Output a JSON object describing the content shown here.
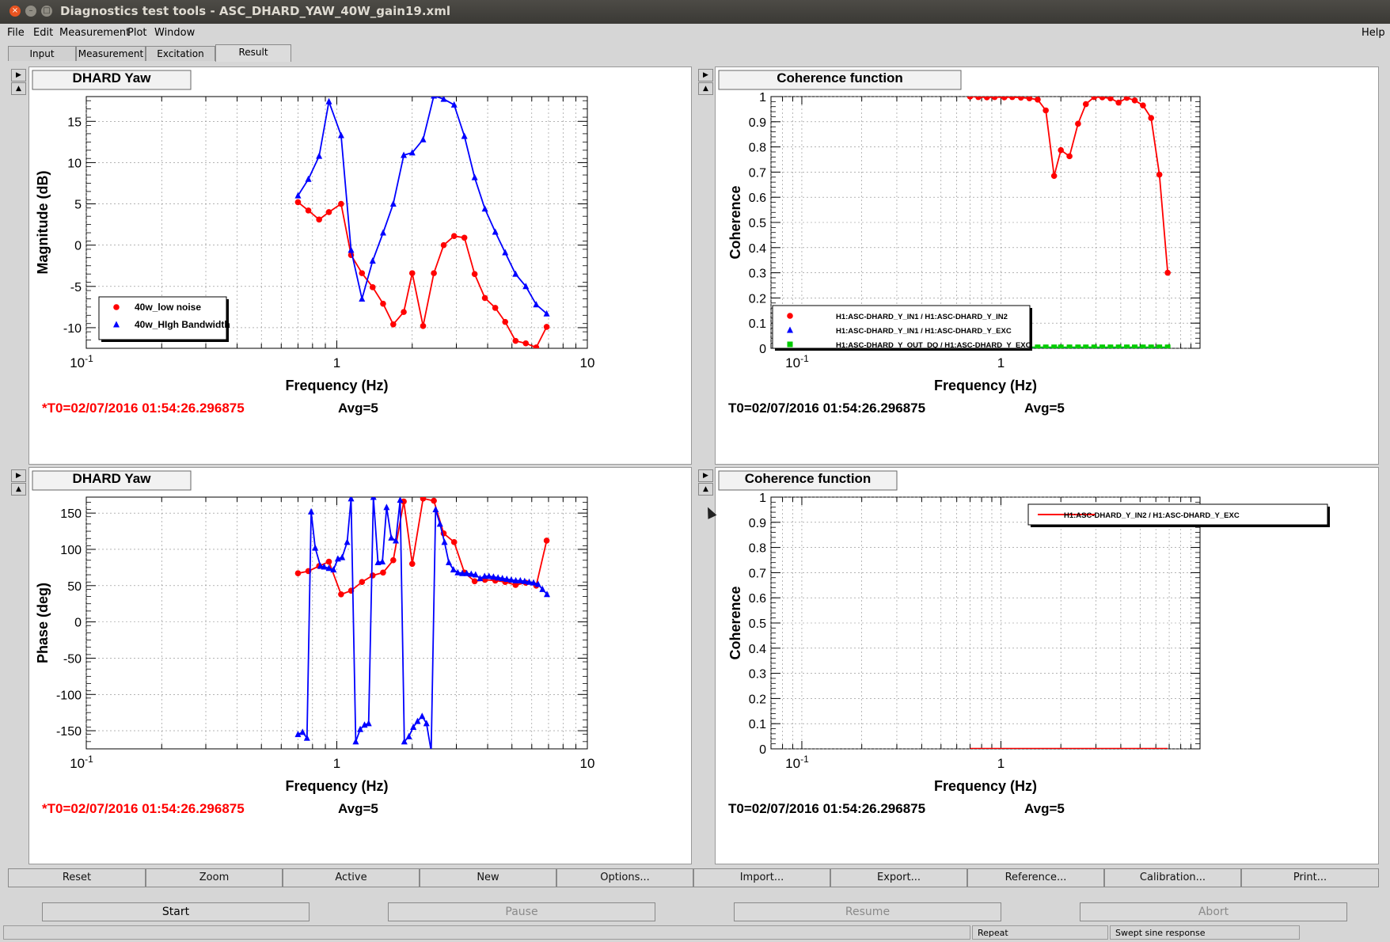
{
  "window": {
    "title": "Diagnostics test tools - ASC_DHARD_YAW_40W_gain19.xml",
    "close": "×",
    "minimize": "–",
    "maximize": "□"
  },
  "menu": {
    "items": [
      "File",
      "Edit",
      "Measurement",
      "Plot",
      "Window"
    ],
    "help": "Help"
  },
  "tabs": [
    "Input",
    "Measurement",
    "Excitation",
    "Result"
  ],
  "side_arrows": {
    "up": "▲",
    "right": "▶"
  },
  "plots": [
    {
      "id": "mag",
      "title": "DHARD Yaw",
      "status": "*T0=02/07/2016 01:54:26.296875",
      "status_color": "#ff0000",
      "avg": "Avg=5",
      "chart_data": {
        "type": "line",
        "xlabel": "Frequency (Hz)",
        "ylabel": "Magnitude (dB)",
        "xscale": "log",
        "xlim": [
          0.1,
          10
        ],
        "ylim": [
          -12.5,
          18
        ],
        "xticks": [
          {
            "v": 0.1,
            "l": "10",
            "sup": "-1"
          },
          {
            "v": 1,
            "l": "1",
            "sup": ""
          },
          {
            "v": 10,
            "l": "10",
            "sup": ""
          }
        ],
        "yticks": [
          -10,
          -5,
          0,
          5,
          10,
          15
        ],
        "ytick_labels": [
          "-10",
          "-5",
          "0",
          "5",
          "10",
          "15"
        ],
        "grid": true,
        "legend": "bottom-left",
        "series": [
          {
            "name": "40w_low noise",
            "color": "#ff0000",
            "marker": "circle",
            "x": [
              0.7,
              0.77,
              0.85,
              0.93,
              1.04,
              1.14,
              1.26,
              1.39,
              1.53,
              1.68,
              1.85,
              2.0,
              2.21,
              2.44,
              2.67,
              2.94,
              3.23,
              3.55,
              3.9,
              4.29,
              4.7,
              5.17,
              5.68,
              6.25,
              6.88
            ],
            "y": [
              5.2,
              4.2,
              3.1,
              4.0,
              5.0,
              -1.2,
              -3.4,
              -5.1,
              -7.1,
              -9.6,
              -8.1,
              -3.4,
              -9.8,
              -3.4,
              0.0,
              1.1,
              0.9,
              -3.5,
              -6.4,
              -7.6,
              -9.3,
              -11.6,
              -11.9,
              -12.4,
              -9.9
            ]
          },
          {
            "name": "40w_HIgh Bandwidth",
            "color": "#0000ff",
            "marker": "triangle",
            "x": [
              0.7,
              0.77,
              0.85,
              0.93,
              1.04,
              1.14,
              1.26,
              1.39,
              1.53,
              1.68,
              1.85,
              2.0,
              2.21,
              2.44,
              2.67,
              2.94,
              3.23,
              3.55,
              3.9,
              4.29,
              4.7,
              5.17,
              5.68,
              6.25,
              6.88
            ],
            "y": [
              6.0,
              8.0,
              10.8,
              17.4,
              13.3,
              -0.6,
              -6.5,
              -1.9,
              1.5,
              5.0,
              10.9,
              11.2,
              12.8,
              18.1,
              17.7,
              17.0,
              13.2,
              8.2,
              4.4,
              1.6,
              -0.9,
              -3.5,
              -5.0,
              -7.2,
              -8.3
            ]
          }
        ]
      }
    },
    {
      "id": "coh1",
      "title": "Coherence function",
      "status": "T0=02/07/2016 01:54:26.296875",
      "status_color": "#000000",
      "avg": "Avg=5",
      "chart_data": {
        "type": "line",
        "xlabel": "Frequency (Hz)",
        "ylabel": "Coherence",
        "xscale": "log",
        "xlim": [
          0.07,
          10
        ],
        "ylim": [
          0,
          1
        ],
        "xticks": [
          {
            "v": 0.1,
            "l": "10",
            "sup": "-1"
          },
          {
            "v": 1,
            "l": "1",
            "sup": ""
          }
        ],
        "yticks": [
          0,
          0.1,
          0.2,
          0.3,
          0.4,
          0.5,
          0.6,
          0.7,
          0.8,
          0.9,
          1
        ],
        "ytick_labels": [
          "0",
          "0.1",
          "0.2",
          "0.3",
          "0.4",
          "0.5",
          "0.6",
          "0.7",
          "0.8",
          "0.9",
          "1"
        ],
        "grid": true,
        "legend": "bottom-left",
        "series": [
          {
            "name": "H1:ASC-DHARD_Y_IN1 / H1:ASC-DHARD_Y_IN2",
            "color": "#ff0000",
            "marker": "circle",
            "x": [
              0.7,
              0.77,
              0.85,
              0.93,
              1.04,
              1.14,
              1.26,
              1.39,
              1.53,
              1.68,
              1.85,
              2.0,
              2.21,
              2.44,
              2.67,
              2.94,
              3.23,
              3.55,
              3.9,
              4.29,
              4.7,
              5.17,
              5.68,
              6.25,
              6.88
            ],
            "y": [
              1.0,
              0.998,
              0.997,
              0.998,
              0.997,
              0.998,
              0.996,
              0.993,
              0.988,
              0.945,
              0.685,
              0.787,
              0.763,
              0.892,
              0.97,
              0.998,
              0.997,
              0.993,
              0.976,
              0.995,
              0.985,
              0.965,
              0.915,
              0.69,
              0.3
            ]
          },
          {
            "name": "H1:ASC-DHARD_Y_IN1 / H1:ASC-DHARD_Y_EXC",
            "color": "#0000ff",
            "marker": "triangle",
            "x": [
              0.7,
              0.77,
              0.85,
              0.93,
              1.04,
              1.14,
              1.26,
              1.39,
              1.53,
              1.68,
              1.85,
              2.0,
              2.21,
              2.44,
              2.67,
              2.94,
              3.23,
              3.55,
              3.9,
              4.29,
              4.7,
              5.17,
              5.68,
              6.25,
              6.88
            ],
            "y": [
              0.001,
              0.001,
              0.001,
              0.001,
              0.001,
              0.001,
              0.001,
              0.001,
              0.001,
              0.001,
              0.001,
              0.001,
              0.001,
              0.001,
              0.001,
              0.001,
              0.001,
              0.001,
              0.001,
              0.001,
              0.001,
              0.001,
              0.001,
              0.001,
              0.001
            ]
          },
          {
            "name": "H1:ASC-DHARD_Y_OUT_DQ / H1:ASC-DHARD_Y_EXC",
            "color": "#00cc00",
            "marker": "square",
            "x": [
              0.7,
              0.77,
              0.85,
              0.93,
              1.04,
              1.14,
              1.26,
              1.39,
              1.53,
              1.68,
              1.85,
              2.0,
              2.21,
              2.44,
              2.67,
              2.94,
              3.23,
              3.55,
              3.9,
              4.29,
              4.7,
              5.17,
              5.68,
              6.25,
              6.88
            ],
            "y": [
              0.004,
              0.004,
              0.004,
              0.004,
              0.004,
              0.004,
              0.004,
              0.004,
              0.004,
              0.004,
              0.004,
              0.004,
              0.004,
              0.004,
              0.004,
              0.004,
              0.004,
              0.004,
              0.004,
              0.004,
              0.004,
              0.004,
              0.004,
              0.004,
              0.004
            ]
          }
        ]
      }
    },
    {
      "id": "phase",
      "title": "DHARD Yaw",
      "status": "*T0=02/07/2016 01:54:26.296875",
      "status_color": "#ff0000",
      "avg": "Avg=5",
      "chart_data": {
        "type": "line",
        "xlabel": "Frequency (Hz)",
        "ylabel": "Phase (deg)",
        "xscale": "log",
        "xlim": [
          0.1,
          10
        ],
        "ylim": [
          -175,
          172
        ],
        "xticks": [
          {
            "v": 0.1,
            "l": "10",
            "sup": "-1"
          },
          {
            "v": 1,
            "l": "1",
            "sup": ""
          },
          {
            "v": 10,
            "l": "10",
            "sup": ""
          }
        ],
        "yticks": [
          -150,
          -100,
          -50,
          0,
          50,
          100,
          150
        ],
        "ytick_labels": [
          "-150",
          "-100",
          "-50",
          "0",
          "50",
          "100",
          "150"
        ],
        "grid": true,
        "legend": "none",
        "series": [
          {
            "name": "40w_low noise",
            "color": "#ff0000",
            "marker": "circle",
            "x": [
              0.7,
              0.77,
              0.85,
              0.93,
              1.04,
              1.14,
              1.26,
              1.39,
              1.53,
              1.68,
              1.85,
              2.0,
              2.21,
              2.44,
              2.67,
              2.94,
              3.23,
              3.55,
              3.9,
              4.29,
              4.7,
              5.17,
              5.68,
              6.25,
              6.88
            ],
            "y": [
              67,
              70,
              77,
              83,
              38,
              43,
              55,
              64,
              68,
              85,
              166,
              80,
              170,
              167,
              122,
              110,
              68,
              56,
              58,
              57,
              55,
              51,
              54,
              50,
              112
            ]
          },
          {
            "name": "40w_HIgh Bandwidth",
            "color": "#0000ff",
            "marker": "triangle",
            "x": [
              0.7,
              0.73,
              0.76,
              0.79,
              0.82,
              0.86,
              0.89,
              0.93,
              0.97,
              1.01,
              1.05,
              1.1,
              1.14,
              1.19,
              1.24,
              1.29,
              1.34,
              1.4,
              1.46,
              1.52,
              1.58,
              1.65,
              1.72,
              1.79,
              1.86,
              1.94,
              2.02,
              2.1,
              2.19,
              2.28,
              2.38,
              2.48,
              2.58,
              2.69,
              2.8,
              2.92,
              3.04,
              3.17,
              3.3,
              3.44,
              3.58,
              3.73,
              3.89,
              4.05,
              4.22,
              4.4,
              4.58,
              4.77,
              4.97,
              5.18,
              5.4,
              5.62,
              5.86,
              6.1,
              6.36,
              6.62,
              6.9
            ],
            "y": [
              -155,
              -152,
              -160,
              152,
              102,
              77,
              76,
              74,
              72,
              87,
              89,
              110,
              170,
              -165,
              -148,
              -142,
              -140,
              172,
              82,
              83,
              158,
              116,
              112,
              168,
              -165,
              -158,
              -145,
              -137,
              -130,
              -140,
              -178,
              155,
              135,
              110,
              82,
              72,
              68,
              67,
              67,
              66,
              65,
              60,
              63,
              63,
              62,
              61,
              60,
              59,
              58,
              57,
              57,
              56,
              55,
              54,
              52,
              45,
              38
            ]
          }
        ]
      }
    },
    {
      "id": "coh2",
      "title": "Coherence function",
      "status": "T0=02/07/2016 01:54:26.296875",
      "status_color": "#000000",
      "avg": "Avg=5",
      "chart_data": {
        "type": "line",
        "xlabel": "Frequency (Hz)",
        "ylabel": "Coherence",
        "xscale": "log",
        "xlim": [
          0.07,
          10
        ],
        "ylim": [
          0,
          1
        ],
        "xticks": [
          {
            "v": 0.1,
            "l": "10",
            "sup": "-1"
          },
          {
            "v": 1,
            "l": "1",
            "sup": ""
          }
        ],
        "yticks": [
          0,
          0.1,
          0.2,
          0.3,
          0.4,
          0.5,
          0.6,
          0.7,
          0.8,
          0.9,
          1
        ],
        "ytick_labels": [
          "0",
          "0.1",
          "0.2",
          "0.3",
          "0.4",
          "0.5",
          "0.6",
          "0.7",
          "0.8",
          "0.9",
          "1"
        ],
        "grid": true,
        "legend": "top-right",
        "series": [
          {
            "name": "H1:ASC-DHARD_Y_IN2 / H1:ASC-DHARD_Y_EXC",
            "color": "#ff0000",
            "marker": "none",
            "x": [
              0.7,
              6.88
            ],
            "y": [
              0.001,
              0.001
            ]
          }
        ]
      }
    }
  ],
  "toolbar": [
    "Reset",
    "Zoom",
    "Active",
    "New",
    "Options...",
    "Import...",
    "Export...",
    "Reference...",
    "Calibration...",
    "Print..."
  ],
  "controls": [
    {
      "label": "Start",
      "enabled": true
    },
    {
      "label": "Pause",
      "enabled": false
    },
    {
      "label": "Resume",
      "enabled": false
    },
    {
      "label": "Abort",
      "enabled": false
    }
  ],
  "status": {
    "left": "",
    "mid": "Repeat",
    "right": "Swept sine response"
  }
}
